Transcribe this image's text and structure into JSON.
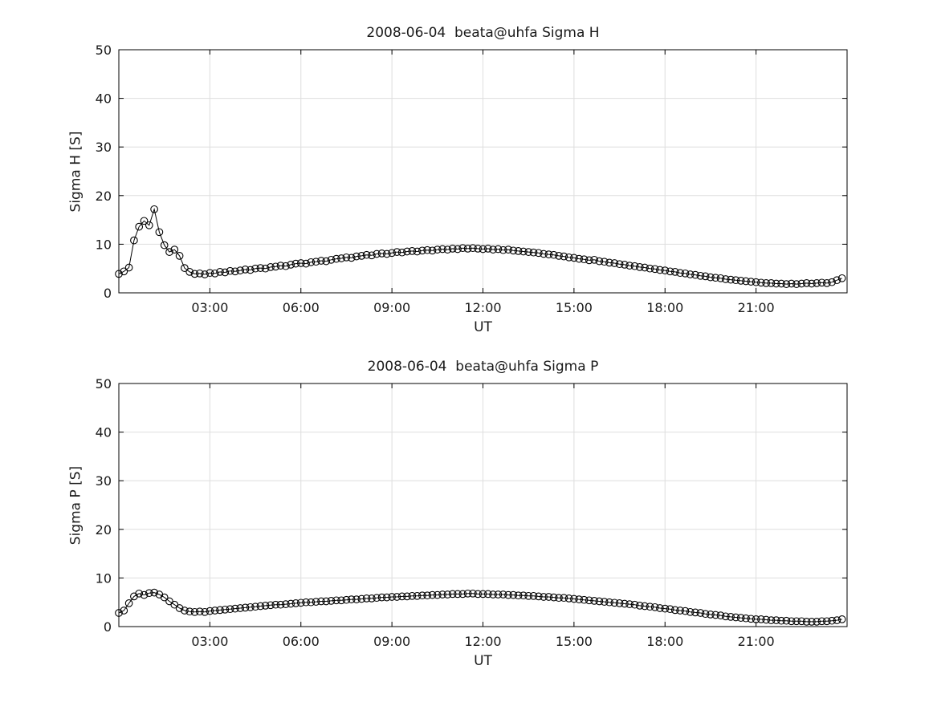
{
  "page": {
    "background": "#ffffff"
  },
  "chart_data": {
    "type": "scatter",
    "marker": "open-circle",
    "line_color": "#000000",
    "grid_color": "#dedede",
    "grid": true,
    "xlabel": "UT",
    "xlim": [
      0,
      24
    ],
    "ylim": [
      0,
      50
    ],
    "yticks": [
      0,
      10,
      20,
      30,
      40,
      50
    ],
    "xticks": [
      {
        "hour": 3,
        "label": "03:00"
      },
      {
        "hour": 6,
        "label": "06:00"
      },
      {
        "hour": 9,
        "label": "09:00"
      },
      {
        "hour": 12,
        "label": "12:00"
      },
      {
        "hour": 15,
        "label": "15:00"
      },
      {
        "hour": 18,
        "label": "18:00"
      },
      {
        "hour": 21,
        "label": "21:00"
      }
    ],
    "x_hours": [
      0,
      0.167,
      0.333,
      0.5,
      0.667,
      0.833,
      1,
      1.167,
      1.333,
      1.5,
      1.667,
      1.833,
      2,
      2.167,
      2.333,
      2.5,
      2.667,
      2.833,
      3,
      3.167,
      3.333,
      3.5,
      3.667,
      3.833,
      4,
      4.167,
      4.333,
      4.5,
      4.667,
      4.833,
      5,
      5.167,
      5.333,
      5.5,
      5.667,
      5.833,
      6,
      6.167,
      6.333,
      6.5,
      6.667,
      6.833,
      7,
      7.167,
      7.333,
      7.5,
      7.667,
      7.833,
      8,
      8.167,
      8.333,
      8.5,
      8.667,
      8.833,
      9,
      9.167,
      9.333,
      9.5,
      9.667,
      9.833,
      10,
      10.167,
      10.333,
      10.5,
      10.667,
      10.833,
      11,
      11.167,
      11.333,
      11.5,
      11.667,
      11.833,
      12,
      12.167,
      12.333,
      12.5,
      12.667,
      12.833,
      13,
      13.167,
      13.333,
      13.5,
      13.667,
      13.833,
      14,
      14.167,
      14.333,
      14.5,
      14.667,
      14.833,
      15,
      15.167,
      15.333,
      15.5,
      15.667,
      15.833,
      16,
      16.167,
      16.333,
      16.5,
      16.667,
      16.833,
      17,
      17.167,
      17.333,
      17.5,
      17.667,
      17.833,
      18,
      18.167,
      18.333,
      18.5,
      18.667,
      18.833,
      19,
      19.167,
      19.333,
      19.5,
      19.667,
      19.833,
      20,
      20.167,
      20.333,
      20.5,
      20.667,
      20.833,
      21,
      21.167,
      21.333,
      21.5,
      21.667,
      21.833,
      22,
      22.167,
      22.333,
      22.5,
      22.667,
      22.833,
      23,
      23.167,
      23.333,
      23.5,
      23.667,
      23.833
    ],
    "subplots": [
      {
        "title": "2008-06-04  beata@uhfa Sigma H",
        "ylabel": "Sigma H [S]",
        "values": [
          3.9,
          4.4,
          5.2,
          10.8,
          13.6,
          14.8,
          13.9,
          17.2,
          12.5,
          9.8,
          8.4,
          8.9,
          7.6,
          5.1,
          4.3,
          3.9,
          4.0,
          3.8,
          4.1,
          4.0,
          4.3,
          4.2,
          4.5,
          4.4,
          4.6,
          4.8,
          4.7,
          5.0,
          5.1,
          5.0,
          5.3,
          5.4,
          5.6,
          5.5,
          5.8,
          6.0,
          6.1,
          6.0,
          6.3,
          6.4,
          6.6,
          6.5,
          6.8,
          7.0,
          7.1,
          7.3,
          7.2,
          7.5,
          7.6,
          7.8,
          7.7,
          8.0,
          8.1,
          8.0,
          8.2,
          8.4,
          8.3,
          8.5,
          8.6,
          8.5,
          8.7,
          8.8,
          8.7,
          8.9,
          9.0,
          8.9,
          9.1,
          9.0,
          9.2,
          9.1,
          9.2,
          9.1,
          9.0,
          9.1,
          8.9,
          9.0,
          8.8,
          8.9,
          8.7,
          8.6,
          8.5,
          8.4,
          8.3,
          8.2,
          8.0,
          7.9,
          7.8,
          7.6,
          7.5,
          7.3,
          7.2,
          7.0,
          6.9,
          6.7,
          6.8,
          6.5,
          6.4,
          6.2,
          6.1,
          5.9,
          5.8,
          5.6,
          5.5,
          5.3,
          5.2,
          5.0,
          4.9,
          4.7,
          4.6,
          4.4,
          4.3,
          4.1,
          4.0,
          3.8,
          3.7,
          3.5,
          3.4,
          3.2,
          3.1,
          3.0,
          2.8,
          2.7,
          2.6,
          2.5,
          2.4,
          2.3,
          2.2,
          2.1,
          2.0,
          2.0,
          1.9,
          1.9,
          1.8,
          1.9,
          1.8,
          1.9,
          2.0,
          1.9,
          2.0,
          2.1,
          2.0,
          2.2,
          2.6,
          3.0
        ]
      },
      {
        "title": "2008-06-04  beata@uhfa Sigma P",
        "ylabel": "Sigma P [S]",
        "values": [
          2.8,
          3.3,
          4.8,
          6.2,
          6.8,
          6.5,
          6.9,
          7.0,
          6.6,
          6.0,
          5.2,
          4.5,
          3.8,
          3.3,
          3.1,
          3.0,
          3.1,
          3.0,
          3.2,
          3.3,
          3.4,
          3.5,
          3.6,
          3.7,
          3.8,
          3.9,
          4.0,
          4.1,
          4.2,
          4.3,
          4.4,
          4.5,
          4.5,
          4.6,
          4.7,
          4.8,
          4.9,
          5.0,
          5.0,
          5.1,
          5.2,
          5.2,
          5.3,
          5.4,
          5.4,
          5.5,
          5.6,
          5.6,
          5.7,
          5.8,
          5.8,
          5.9,
          6.0,
          6.0,
          6.1,
          6.1,
          6.2,
          6.2,
          6.3,
          6.3,
          6.4,
          6.4,
          6.5,
          6.5,
          6.6,
          6.6,
          6.7,
          6.7,
          6.7,
          6.8,
          6.8,
          6.7,
          6.7,
          6.7,
          6.6,
          6.6,
          6.6,
          6.5,
          6.5,
          6.4,
          6.4,
          6.3,
          6.3,
          6.2,
          6.1,
          6.1,
          6.0,
          5.9,
          5.9,
          5.8,
          5.7,
          5.6,
          5.5,
          5.4,
          5.3,
          5.2,
          5.1,
          5.0,
          4.9,
          4.8,
          4.7,
          4.6,
          4.5,
          4.3,
          4.2,
          4.1,
          4.0,
          3.8,
          3.7,
          3.6,
          3.4,
          3.3,
          3.2,
          3.0,
          2.9,
          2.8,
          2.6,
          2.5,
          2.4,
          2.3,
          2.1,
          2.0,
          1.9,
          1.8,
          1.7,
          1.6,
          1.5,
          1.5,
          1.4,
          1.3,
          1.3,
          1.2,
          1.2,
          1.1,
          1.1,
          1.1,
          1.0,
          1.0,
          1.0,
          1.1,
          1.1,
          1.2,
          1.3,
          1.5
        ]
      }
    ]
  }
}
